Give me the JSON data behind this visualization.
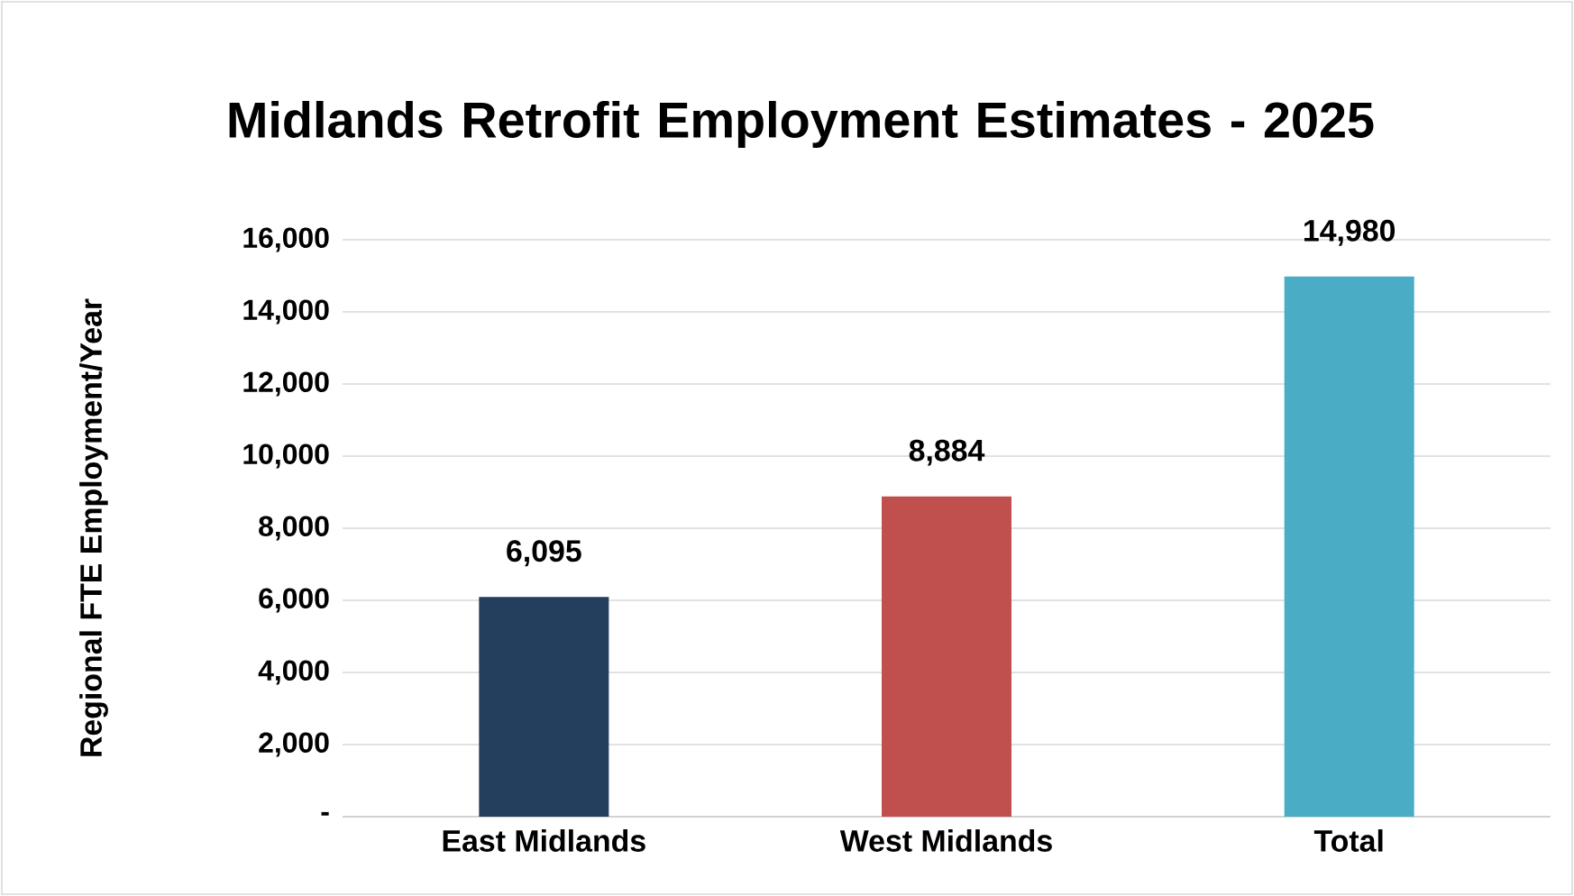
{
  "chart_data": {
    "type": "bar",
    "title": "Midlands Retrofit Employment Estimates - 2025",
    "ylabel": "Regional FTE Employment/Year",
    "categories": [
      "East Midlands",
      "West Midlands",
      "Total"
    ],
    "values": [
      6095,
      8884,
      14980
    ],
    "colors": [
      "#243f5e",
      "#c0504d",
      "#4bacc6"
    ],
    "value_labels": [
      "6,095",
      "8,884",
      "14,980"
    ],
    "ylim": [
      0,
      16000
    ],
    "yticks": [
      {
        "value": 0,
        "label": "-"
      },
      {
        "value": 2000,
        "label": "2,000"
      },
      {
        "value": 4000,
        "label": "4,000"
      },
      {
        "value": 6000,
        "label": "6,000"
      },
      {
        "value": 8000,
        "label": "8,000"
      },
      {
        "value": 10000,
        "label": "10,000"
      },
      {
        "value": 12000,
        "label": "12,000"
      },
      {
        "value": 14000,
        "label": "14,000"
      },
      {
        "value": 16000,
        "label": "16,000"
      }
    ],
    "grid": "y"
  }
}
